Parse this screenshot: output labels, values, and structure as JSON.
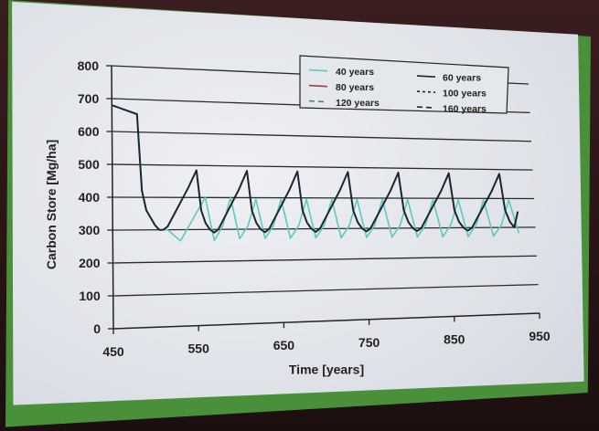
{
  "chart_data": {
    "type": "line",
    "title": "",
    "xlabel": "Time [years]",
    "ylabel": "Carbon Store [Mg/ha]",
    "xlim": [
      450,
      950
    ],
    "ylim": [
      0,
      800
    ],
    "xticks": [
      450,
      550,
      650,
      750,
      850,
      950
    ],
    "yticks": [
      0,
      100,
      200,
      300,
      400,
      500,
      600,
      700,
      800
    ],
    "grid": "horizontal",
    "legend": {
      "placement": "top-right",
      "entries": [
        "40 years",
        "60 years",
        "80 years",
        "100 years",
        "120 years",
        "160 years"
      ]
    },
    "series": [
      {
        "name": "60 years",
        "color": "#1c2630",
        "x": [
          450,
          480,
          485,
          490,
          500,
          505,
          510,
          515,
          540,
          550,
          555,
          560,
          565,
          570,
          575,
          600,
          610,
          615,
          620,
          625,
          630,
          635,
          660,
          670,
          675,
          680,
          685,
          690,
          695,
          720,
          730,
          735,
          740,
          745,
          750,
          755,
          780,
          790,
          795,
          800,
          805,
          810,
          815,
          840,
          850,
          855,
          860,
          865,
          870,
          875,
          900,
          910,
          915,
          920,
          925,
          930
        ],
        "y": [
          680,
          655,
          420,
          360,
          315,
          300,
          300,
          310,
          430,
          485,
          360,
          320,
          300,
          290,
          300,
          425,
          485,
          360,
          320,
          300,
          290,
          300,
          425,
          485,
          360,
          320,
          300,
          290,
          300,
          425,
          485,
          360,
          320,
          300,
          290,
          300,
          425,
          485,
          360,
          320,
          300,
          290,
          300,
          425,
          485,
          360,
          320,
          300,
          290,
          300,
          425,
          485,
          360,
          320,
          300,
          355
        ]
      },
      {
        "name": "40 years",
        "color": "#5ec8c2",
        "x": [
          450,
          480,
          485,
          490,
          500,
          505,
          510,
          515,
          530,
          540,
          560,
          570,
          580,
          590,
          600,
          610,
          620,
          630,
          640,
          650,
          660,
          670,
          680,
          690,
          700,
          710,
          720,
          730,
          740,
          750,
          760,
          770,
          780,
          790,
          800,
          810,
          820,
          830,
          840,
          850,
          860,
          870,
          880,
          890,
          900,
          910,
          920,
          930
        ],
        "y": [
          680,
          655,
          420,
          360,
          315,
          300,
          300,
          300,
          265,
          310,
          400,
          265,
          310,
          400,
          270,
          310,
          395,
          270,
          310,
          395,
          270,
          310,
          395,
          270,
          310,
          395,
          270,
          310,
          395,
          270,
          310,
          395,
          270,
          310,
          395,
          270,
          310,
          395,
          270,
          310,
          395,
          270,
          310,
          395,
          270,
          310,
          395,
          280
        ]
      }
    ]
  }
}
